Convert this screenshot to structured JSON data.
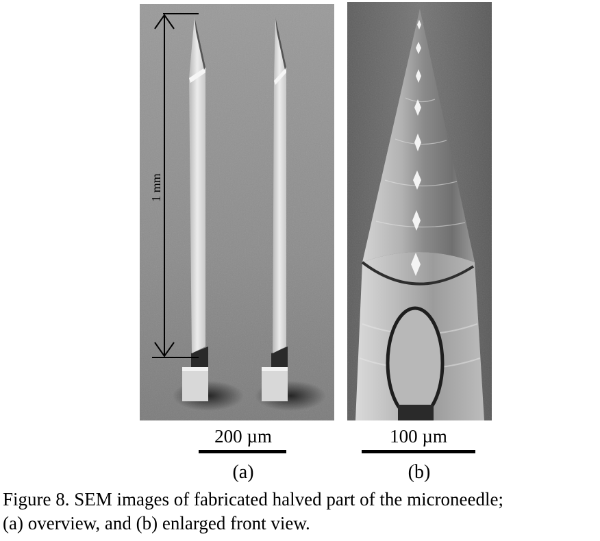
{
  "figure": {
    "panel_a": {
      "length_label": "1 mm",
      "scale_label": "200 µm",
      "letter": "(a)"
    },
    "panel_b": {
      "scale_label": "100 µm",
      "letter": "(b)"
    },
    "caption_lines": [
      "Figure 8. SEM images of fabricated halved part of the microneedle;",
      "(a) overview, and (b) enlarged front view."
    ]
  }
}
